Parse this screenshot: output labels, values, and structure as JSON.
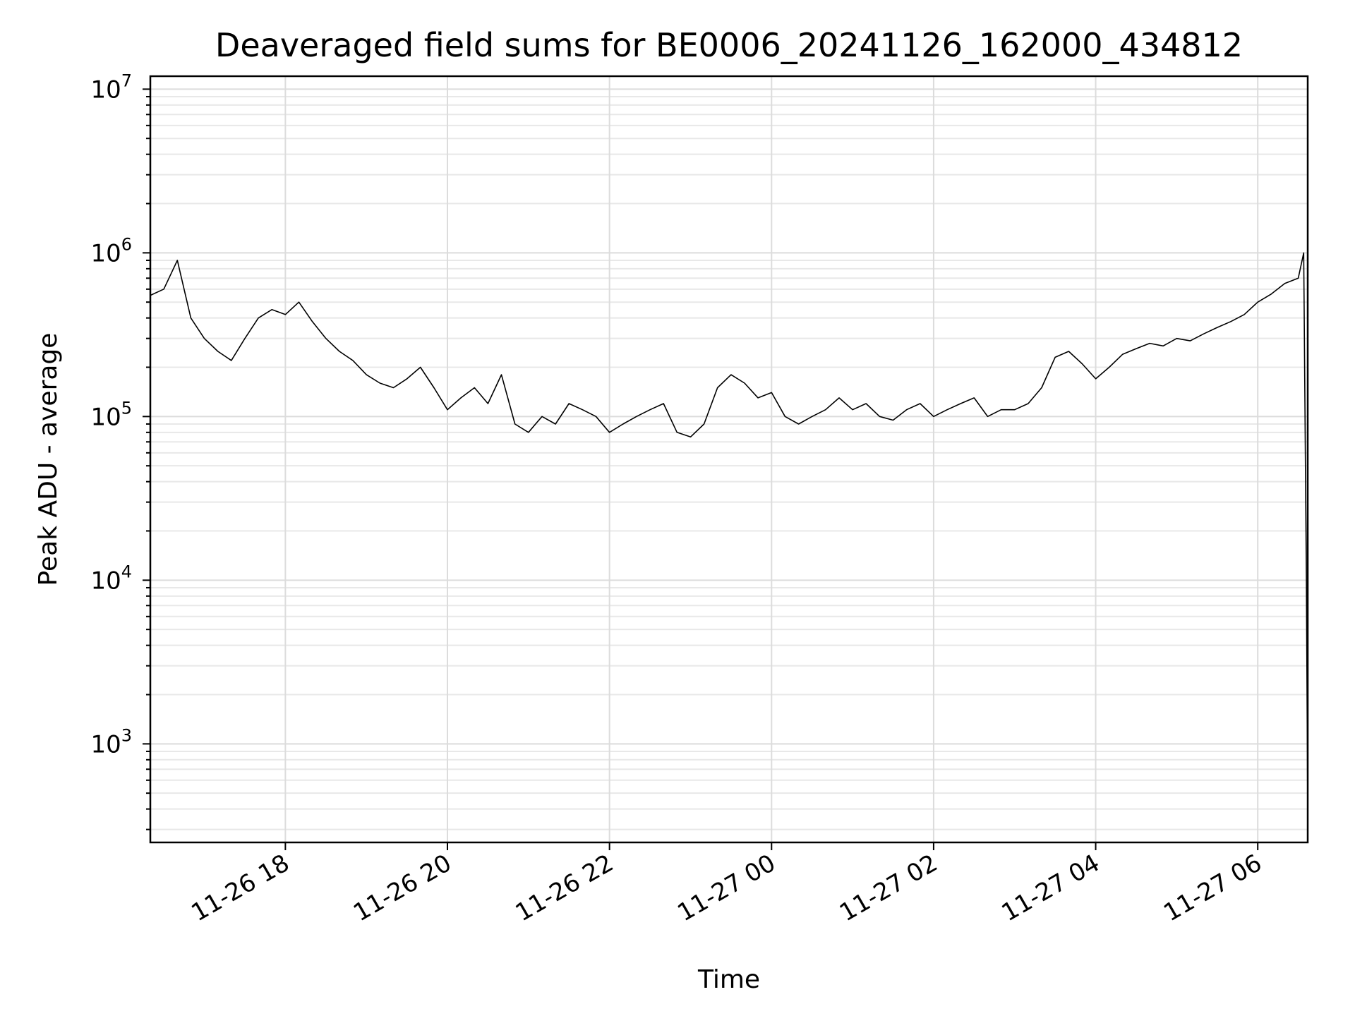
{
  "chart_data": {
    "type": "line",
    "title": "Deaveraged field sums for BE0006_20241126_162000_434812",
    "xlabel": "Time",
    "ylabel": "Peak ADU - average",
    "yscale": "log",
    "ylim": [
      250,
      12000000
    ],
    "xlim": [
      "2024-11-26 16:20",
      "2024-11-27 06:37"
    ],
    "grid": true,
    "y_ticks": [
      {
        "base": "10",
        "exp": "3",
        "value": 1000
      },
      {
        "base": "10",
        "exp": "4",
        "value": 10000
      },
      {
        "base": "10",
        "exp": "5",
        "value": 100000
      },
      {
        "base": "10",
        "exp": "6",
        "value": 1000000
      },
      {
        "base": "10",
        "exp": "7",
        "value": 10000000
      }
    ],
    "x_ticks": [
      {
        "label": "11-26 18",
        "time": "2024-11-26 18:00"
      },
      {
        "label": "11-26 20",
        "time": "2024-11-26 20:00"
      },
      {
        "label": "11-26 22",
        "time": "2024-11-26 22:00"
      },
      {
        "label": "11-27 00",
        "time": "2024-11-27 00:00"
      },
      {
        "label": "11-27 02",
        "time": "2024-11-27 02:00"
      },
      {
        "label": "11-27 04",
        "time": "2024-11-27 04:00"
      },
      {
        "label": "11-27 06",
        "time": "2024-11-27 06:00"
      }
    ],
    "series": [
      {
        "color": "#000000",
        "x": [
          "2024-11-26 16:20",
          "2024-11-26 16:30",
          "2024-11-26 16:40",
          "2024-11-26 16:50",
          "2024-11-26 17:00",
          "2024-11-26 17:10",
          "2024-11-26 17:20",
          "2024-11-26 17:30",
          "2024-11-26 17:40",
          "2024-11-26 17:50",
          "2024-11-26 18:00",
          "2024-11-26 18:10",
          "2024-11-26 18:20",
          "2024-11-26 18:30",
          "2024-11-26 18:40",
          "2024-11-26 18:50",
          "2024-11-26 19:00",
          "2024-11-26 19:10",
          "2024-11-26 19:20",
          "2024-11-26 19:30",
          "2024-11-26 19:40",
          "2024-11-26 19:50",
          "2024-11-26 20:00",
          "2024-11-26 20:10",
          "2024-11-26 20:20",
          "2024-11-26 20:30",
          "2024-11-26 20:40",
          "2024-11-26 20:50",
          "2024-11-26 21:00",
          "2024-11-26 21:10",
          "2024-11-26 21:20",
          "2024-11-26 21:30",
          "2024-11-26 21:40",
          "2024-11-26 21:50",
          "2024-11-26 22:00",
          "2024-11-26 22:10",
          "2024-11-26 22:20",
          "2024-11-26 22:30",
          "2024-11-26 22:40",
          "2024-11-26 22:50",
          "2024-11-26 23:00",
          "2024-11-26 23:10",
          "2024-11-26 23:20",
          "2024-11-26 23:30",
          "2024-11-26 23:40",
          "2024-11-26 23:50",
          "2024-11-27 00:00",
          "2024-11-27 00:10",
          "2024-11-27 00:20",
          "2024-11-27 00:30",
          "2024-11-27 00:40",
          "2024-11-27 00:50",
          "2024-11-27 01:00",
          "2024-11-27 01:10",
          "2024-11-27 01:20",
          "2024-11-27 01:30",
          "2024-11-27 01:40",
          "2024-11-27 01:50",
          "2024-11-27 02:00",
          "2024-11-27 02:10",
          "2024-11-27 02:20",
          "2024-11-27 02:30",
          "2024-11-27 02:40",
          "2024-11-27 02:50",
          "2024-11-27 03:00",
          "2024-11-27 03:10",
          "2024-11-27 03:20",
          "2024-11-27 03:30",
          "2024-11-27 03:40",
          "2024-11-27 03:50",
          "2024-11-27 04:00",
          "2024-11-27 04:10",
          "2024-11-27 04:20",
          "2024-11-27 04:30",
          "2024-11-27 04:40",
          "2024-11-27 04:50",
          "2024-11-27 05:00",
          "2024-11-27 05:10",
          "2024-11-27 05:20",
          "2024-11-27 05:30",
          "2024-11-27 05:40",
          "2024-11-27 05:50",
          "2024-11-27 06:00",
          "2024-11-27 06:10",
          "2024-11-27 06:20",
          "2024-11-27 06:30",
          "2024-11-27 06:34",
          "2024-11-27 06:36",
          "2024-11-27 06:37"
        ],
        "y": [
          550000,
          600000,
          900000,
          400000,
          300000,
          250000,
          220000,
          300000,
          400000,
          450000,
          420000,
          500000,
          380000,
          300000,
          250000,
          220000,
          180000,
          160000,
          150000,
          170000,
          200000,
          150000,
          110000,
          130000,
          150000,
          120000,
          180000,
          90000,
          80000,
          100000,
          90000,
          120000,
          110000,
          100000,
          80000,
          90000,
          100000,
          110000,
          120000,
          80000,
          75000,
          90000,
          150000,
          180000,
          160000,
          130000,
          140000,
          100000,
          90000,
          100000,
          110000,
          130000,
          110000,
          120000,
          100000,
          95000,
          110000,
          120000,
          100000,
          110000,
          120000,
          130000,
          100000,
          110000,
          110000,
          120000,
          150000,
          230000,
          250000,
          210000,
          170000,
          200000,
          240000,
          260000,
          280000,
          270000,
          300000,
          290000,
          320000,
          350000,
          380000,
          420000,
          500000,
          560000,
          650000,
          700000,
          1000000,
          10000,
          400
        ]
      }
    ]
  }
}
